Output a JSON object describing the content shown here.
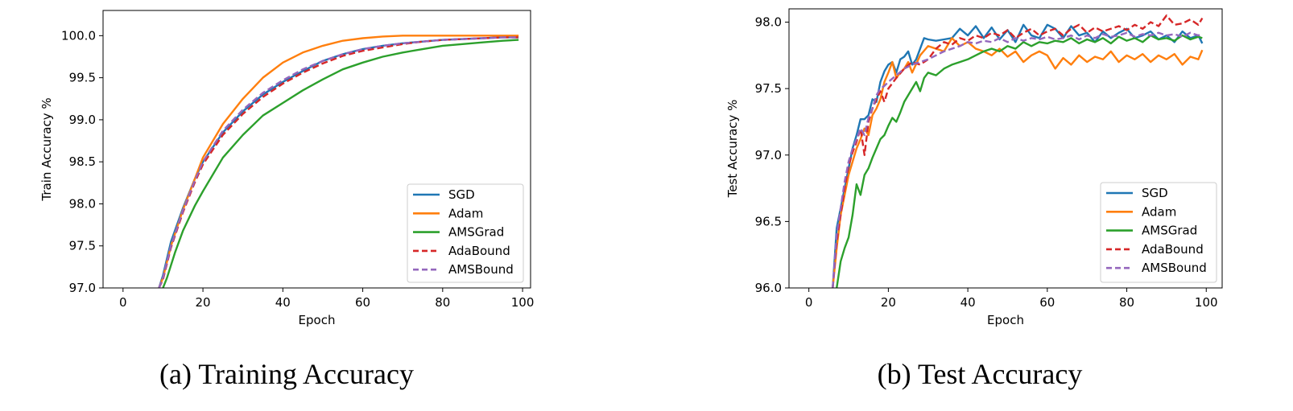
{
  "chart_data": [
    {
      "type": "line",
      "caption": "(a) Training Accuracy",
      "xlabel": "Epoch",
      "ylabel": "Train Accuracy %",
      "xlim": [
        -5,
        102
      ],
      "ylim": [
        97.0,
        100.3
      ],
      "xticks": [
        "0",
        "20",
        "40",
        "60",
        "80",
        "100"
      ],
      "yticks": [
        "97.0",
        "97.5",
        "98.0",
        "98.5",
        "99.0",
        "99.5",
        "100.0"
      ],
      "legend_position": "lower-right",
      "series": [
        {
          "name": "SGD",
          "color": "#1f77b4",
          "style": "solid",
          "x": [
            9,
            10,
            12,
            15,
            18,
            20,
            25,
            30,
            35,
            40,
            45,
            50,
            55,
            60,
            65,
            70,
            75,
            80,
            85,
            90,
            95,
            99
          ],
          "y": [
            97.0,
            97.15,
            97.55,
            97.95,
            98.3,
            98.5,
            98.85,
            99.1,
            99.3,
            99.45,
            99.58,
            99.7,
            99.78,
            99.84,
            99.88,
            99.91,
            99.93,
            99.95,
            99.96,
            99.97,
            99.98,
            99.98
          ]
        },
        {
          "name": "Adam",
          "color": "#ff7f0e",
          "style": "solid",
          "x": [
            9,
            10,
            12,
            15,
            18,
            20,
            25,
            30,
            35,
            40,
            45,
            50,
            55,
            60,
            65,
            70,
            75,
            80,
            85,
            90,
            95,
            99
          ],
          "y": [
            97.0,
            97.12,
            97.5,
            97.93,
            98.3,
            98.55,
            98.95,
            99.25,
            99.5,
            99.68,
            99.8,
            99.88,
            99.94,
            99.97,
            99.99,
            100.0,
            100.0,
            100.0,
            100.0,
            100.0,
            100.0,
            100.0
          ]
        },
        {
          "name": "AMSGrad",
          "color": "#2ca02c",
          "style": "solid",
          "x": [
            10,
            11,
            13,
            15,
            18,
            20,
            25,
            30,
            35,
            40,
            45,
            50,
            55,
            60,
            65,
            70,
            75,
            80,
            85,
            90,
            95,
            99
          ],
          "y": [
            97.0,
            97.12,
            97.42,
            97.68,
            97.98,
            98.15,
            98.55,
            98.82,
            99.05,
            99.2,
            99.35,
            99.48,
            99.6,
            99.68,
            99.75,
            99.8,
            99.84,
            99.88,
            99.9,
            99.92,
            99.94,
            99.95
          ]
        },
        {
          "name": "AdaBound",
          "color": "#d62728",
          "style": "dashed",
          "x": [
            9,
            10,
            12,
            15,
            18,
            20,
            25,
            30,
            35,
            40,
            45,
            50,
            55,
            60,
            65,
            70,
            75,
            80,
            85,
            90,
            95,
            99
          ],
          "y": [
            97.0,
            97.1,
            97.48,
            97.9,
            98.26,
            98.47,
            98.82,
            99.07,
            99.27,
            99.43,
            99.56,
            99.67,
            99.76,
            99.82,
            99.86,
            99.9,
            99.93,
            99.95,
            99.96,
            99.97,
            99.98,
            99.98
          ]
        },
        {
          "name": "AMSBound",
          "color": "#9467bd",
          "style": "dashed",
          "x": [
            9,
            10,
            12,
            15,
            18,
            20,
            25,
            30,
            35,
            40,
            45,
            50,
            55,
            60,
            65,
            70,
            75,
            80,
            85,
            90,
            95,
            99
          ],
          "y": [
            97.0,
            97.12,
            97.5,
            97.92,
            98.28,
            98.5,
            98.87,
            99.12,
            99.32,
            99.47,
            99.6,
            99.7,
            99.78,
            99.84,
            99.88,
            99.91,
            99.93,
            99.95,
            99.96,
            99.97,
            99.98,
            99.98
          ]
        }
      ]
    },
    {
      "type": "line",
      "caption": "(b) Test Accuracy",
      "xlabel": "Epoch",
      "ylabel": "Test Accuracy %",
      "xlim": [
        -5,
        104
      ],
      "ylim": [
        96.0,
        98.1
      ],
      "xticks": [
        "0",
        "20",
        "40",
        "60",
        "80",
        "100"
      ],
      "yticks": [
        "96.0",
        "96.5",
        "97.0",
        "97.5",
        "98.0"
      ],
      "legend_position": "lower-right",
      "series": [
        {
          "name": "SGD",
          "color": "#1f77b4",
          "style": "solid",
          "x": [
            6,
            7,
            8,
            9,
            10,
            11,
            12,
            13,
            14,
            15,
            16,
            17,
            18,
            19,
            20,
            21,
            22,
            23,
            24,
            25,
            26,
            27,
            28,
            29,
            30,
            32,
            34,
            36,
            38,
            40,
            42,
            44,
            46,
            48,
            50,
            52,
            54,
            56,
            58,
            60,
            62,
            64,
            66,
            68,
            70,
            72,
            74,
            76,
            78,
            80,
            82,
            84,
            86,
            88,
            90,
            92,
            94,
            96,
            98,
            99
          ],
          "y": [
            96.0,
            96.45,
            96.6,
            96.75,
            96.9,
            97.05,
            97.15,
            97.27,
            97.27,
            97.3,
            97.42,
            97.4,
            97.55,
            97.63,
            97.68,
            97.7,
            97.62,
            97.72,
            97.74,
            97.78,
            97.68,
            97.72,
            97.8,
            97.88,
            97.87,
            97.86,
            97.87,
            97.88,
            97.95,
            97.9,
            97.97,
            97.88,
            97.96,
            97.87,
            97.94,
            97.85,
            97.98,
            97.9,
            97.88,
            97.98,
            97.95,
            97.88,
            97.97,
            97.9,
            97.92,
            97.85,
            97.93,
            97.88,
            97.92,
            97.95,
            97.88,
            97.9,
            97.93,
            97.87,
            97.9,
            97.85,
            97.93,
            97.88,
            97.9,
            97.84
          ]
        },
        {
          "name": "Adam",
          "color": "#ff7f0e",
          "style": "solid",
          "x": [
            6,
            7,
            8,
            9,
            10,
            11,
            12,
            13,
            14,
            15,
            16,
            17,
            18,
            19,
            20,
            21,
            22,
            23,
            24,
            25,
            26,
            28,
            30,
            32,
            34,
            36,
            38,
            40,
            42,
            44,
            46,
            48,
            50,
            52,
            54,
            56,
            58,
            60,
            62,
            64,
            66,
            68,
            70,
            72,
            74,
            76,
            78,
            80,
            82,
            84,
            86,
            88,
            90,
            92,
            94,
            96,
            98,
            99
          ],
          "y": [
            96.0,
            96.3,
            96.55,
            96.7,
            96.85,
            96.95,
            97.05,
            97.12,
            97.2,
            97.15,
            97.3,
            97.35,
            97.42,
            97.55,
            97.62,
            97.7,
            97.58,
            97.62,
            97.65,
            97.7,
            97.62,
            97.75,
            97.82,
            97.8,
            97.78,
            97.88,
            97.82,
            97.85,
            97.8,
            97.78,
            97.75,
            97.8,
            97.74,
            97.78,
            97.7,
            97.75,
            97.78,
            97.75,
            97.65,
            97.73,
            97.68,
            97.75,
            97.7,
            97.74,
            97.72,
            97.78,
            97.7,
            97.75,
            97.72,
            97.76,
            97.7,
            97.75,
            97.72,
            97.76,
            97.68,
            97.74,
            97.72,
            97.79
          ]
        },
        {
          "name": "AMSGrad",
          "color": "#2ca02c",
          "style": "solid",
          "x": [
            7,
            8,
            9,
            10,
            11,
            12,
            13,
            14,
            15,
            16,
            17,
            18,
            19,
            20,
            21,
            22,
            23,
            24,
            25,
            26,
            27,
            28,
            29,
            30,
            32,
            34,
            36,
            38,
            40,
            42,
            44,
            46,
            48,
            50,
            52,
            54,
            56,
            58,
            60,
            62,
            64,
            66,
            68,
            70,
            72,
            74,
            76,
            78,
            80,
            82,
            84,
            86,
            88,
            90,
            92,
            94,
            96,
            98,
            99
          ],
          "y": [
            96.0,
            96.2,
            96.3,
            96.38,
            96.55,
            96.78,
            96.7,
            96.85,
            96.9,
            96.98,
            97.05,
            97.12,
            97.15,
            97.22,
            97.28,
            97.25,
            97.32,
            97.4,
            97.45,
            97.5,
            97.55,
            97.48,
            97.58,
            97.62,
            97.6,
            97.65,
            97.68,
            97.7,
            97.72,
            97.75,
            97.78,
            97.8,
            97.78,
            97.82,
            97.8,
            97.85,
            97.82,
            97.85,
            97.84,
            97.86,
            97.85,
            97.88,
            97.84,
            97.87,
            97.85,
            97.88,
            97.84,
            97.89,
            97.86,
            97.88,
            97.85,
            97.9,
            97.87,
            97.88,
            97.86,
            97.9,
            97.87,
            97.89,
            97.88
          ]
        },
        {
          "name": "AdaBound",
          "color": "#d62728",
          "style": "dashed",
          "x": [
            6,
            7,
            8,
            9,
            10,
            11,
            12,
            13,
            14,
            15,
            16,
            17,
            18,
            19,
            20,
            22,
            24,
            26,
            28,
            30,
            32,
            34,
            36,
            38,
            40,
            42,
            44,
            46,
            48,
            50,
            52,
            54,
            56,
            58,
            60,
            62,
            64,
            66,
            68,
            70,
            72,
            74,
            76,
            78,
            80,
            82,
            84,
            86,
            88,
            90,
            92,
            94,
            96,
            98,
            99
          ],
          "y": [
            96.0,
            96.35,
            96.55,
            96.75,
            96.92,
            97.02,
            97.1,
            97.2,
            97.0,
            97.25,
            97.35,
            97.42,
            97.48,
            97.4,
            97.5,
            97.58,
            97.65,
            97.7,
            97.68,
            97.72,
            97.8,
            97.85,
            97.83,
            97.88,
            97.86,
            97.9,
            97.88,
            97.92,
            97.9,
            97.94,
            97.88,
            97.92,
            97.95,
            97.9,
            97.93,
            97.95,
            97.9,
            97.95,
            97.98,
            97.92,
            97.96,
            97.93,
            97.95,
            97.97,
            97.94,
            97.98,
            97.95,
            98.0,
            97.97,
            98.05,
            97.98,
            97.99,
            98.02,
            97.98,
            98.03
          ]
        },
        {
          "name": "AMSBound",
          "color": "#9467bd",
          "style": "dashed",
          "x": [
            6,
            7,
            8,
            9,
            10,
            11,
            12,
            13,
            14,
            15,
            16,
            17,
            18,
            19,
            20,
            22,
            24,
            26,
            28,
            30,
            32,
            34,
            36,
            38,
            40,
            42,
            44,
            46,
            48,
            50,
            52,
            54,
            56,
            58,
            60,
            62,
            64,
            66,
            68,
            70,
            72,
            74,
            76,
            78,
            80,
            82,
            84,
            86,
            88,
            90,
            92,
            94,
            96,
            98,
            99
          ],
          "y": [
            96.0,
            96.4,
            96.6,
            96.8,
            96.95,
            97.05,
            97.12,
            97.2,
            97.15,
            97.28,
            97.35,
            97.45,
            97.5,
            97.52,
            97.55,
            97.6,
            97.65,
            97.68,
            97.7,
            97.72,
            97.75,
            97.78,
            97.8,
            97.82,
            97.85,
            97.84,
            97.86,
            97.85,
            97.88,
            97.85,
            97.88,
            97.86,
            97.88,
            97.87,
            97.89,
            97.87,
            97.88,
            97.9,
            97.87,
            97.9,
            97.88,
            97.91,
            97.89,
            97.9,
            97.92,
            97.89,
            97.91,
            97.9,
            97.92,
            97.9,
            97.91,
            97.89,
            97.92,
            97.9,
            97.91
          ]
        }
      ]
    }
  ]
}
